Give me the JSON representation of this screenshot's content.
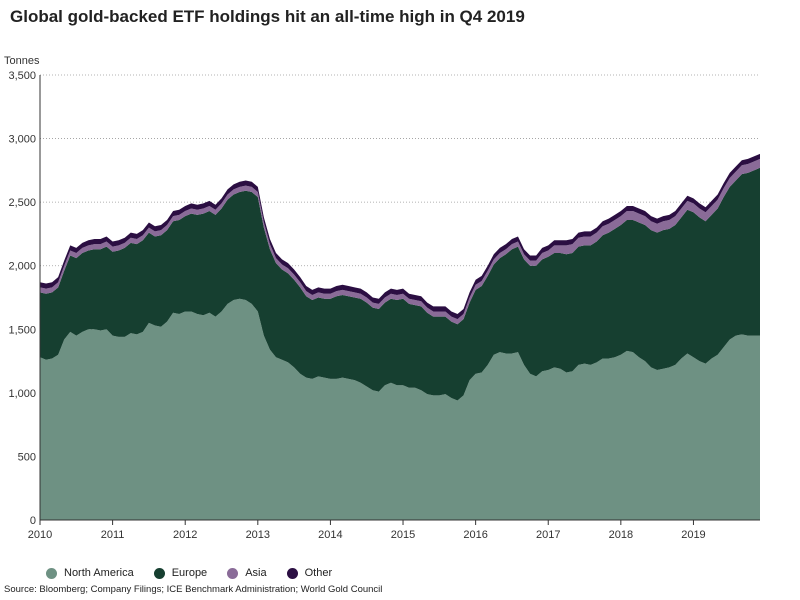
{
  "chart_data": {
    "type": "area",
    "title": "Global gold-backed ETF holdings hit an all-time high in Q4 2019",
    "ylabel": "Tonnes",
    "xlabel": "",
    "ylim": [
      0,
      3500
    ],
    "xlim": [
      "2010-01",
      "2019-12"
    ],
    "stacked": true,
    "grid": true,
    "legend": "bottom-left",
    "yticks": [
      "0",
      "500",
      "1,000",
      "1,500",
      "2,000",
      "2,500",
      "3,000",
      "3,500"
    ],
    "ytick_values": [
      0,
      500,
      1000,
      1500,
      2000,
      2500,
      3000,
      3500
    ],
    "xticks": [
      "2010",
      "2011",
      "2012",
      "2013",
      "2014",
      "2015",
      "2016",
      "2017",
      "2018",
      "2019"
    ],
    "x": [
      "2010-01",
      "2010-02",
      "2010-03",
      "2010-04",
      "2010-05",
      "2010-06",
      "2010-07",
      "2010-08",
      "2010-09",
      "2010-10",
      "2010-11",
      "2010-12",
      "2011-01",
      "2011-02",
      "2011-03",
      "2011-04",
      "2011-05",
      "2011-06",
      "2011-07",
      "2011-08",
      "2011-09",
      "2011-10",
      "2011-11",
      "2011-12",
      "2012-01",
      "2012-02",
      "2012-03",
      "2012-04",
      "2012-05",
      "2012-06",
      "2012-07",
      "2012-08",
      "2012-09",
      "2012-10",
      "2012-11",
      "2012-12",
      "2013-01",
      "2013-02",
      "2013-03",
      "2013-04",
      "2013-05",
      "2013-06",
      "2013-07",
      "2013-08",
      "2013-09",
      "2013-10",
      "2013-11",
      "2013-12",
      "2014-01",
      "2014-02",
      "2014-03",
      "2014-04",
      "2014-05",
      "2014-06",
      "2014-07",
      "2014-08",
      "2014-09",
      "2014-10",
      "2014-11",
      "2014-12",
      "2015-01",
      "2015-02",
      "2015-03",
      "2015-04",
      "2015-05",
      "2015-06",
      "2015-07",
      "2015-08",
      "2015-09",
      "2015-10",
      "2015-11",
      "2015-12",
      "2016-01",
      "2016-02",
      "2016-03",
      "2016-04",
      "2016-05",
      "2016-06",
      "2016-07",
      "2016-08",
      "2016-09",
      "2016-10",
      "2016-11",
      "2016-12",
      "2017-01",
      "2017-02",
      "2017-03",
      "2017-04",
      "2017-05",
      "2017-06",
      "2017-07",
      "2017-08",
      "2017-09",
      "2017-10",
      "2017-11",
      "2017-12",
      "2018-01",
      "2018-02",
      "2018-03",
      "2018-04",
      "2018-05",
      "2018-06",
      "2018-07",
      "2018-08",
      "2018-09",
      "2018-10",
      "2018-11",
      "2018-12",
      "2019-01",
      "2019-02",
      "2019-03",
      "2019-04",
      "2019-05",
      "2019-06",
      "2019-07",
      "2019-08",
      "2019-09",
      "2019-10",
      "2019-11",
      "2019-12"
    ],
    "series": [
      {
        "name": "North America",
        "color": "#6e9183",
        "values": [
          1280,
          1260,
          1270,
          1300,
          1420,
          1480,
          1450,
          1480,
          1500,
          1500,
          1490,
          1500,
          1450,
          1440,
          1440,
          1470,
          1460,
          1480,
          1550,
          1530,
          1520,
          1560,
          1630,
          1620,
          1640,
          1640,
          1620,
          1610,
          1630,
          1600,
          1640,
          1700,
          1730,
          1740,
          1730,
          1700,
          1640,
          1450,
          1340,
          1280,
          1260,
          1240,
          1200,
          1150,
          1120,
          1110,
          1130,
          1120,
          1110,
          1110,
          1120,
          1110,
          1100,
          1080,
          1050,
          1020,
          1010,
          1060,
          1080,
          1060,
          1060,
          1040,
          1040,
          1020,
          990,
          980,
          980,
          990,
          960,
          940,
          980,
          1100,
          1150,
          1160,
          1220,
          1300,
          1320,
          1310,
          1310,
          1320,
          1220,
          1150,
          1130,
          1170,
          1180,
          1200,
          1190,
          1160,
          1170,
          1220,
          1230,
          1220,
          1240,
          1270,
          1270,
          1280,
          1300,
          1330,
          1320,
          1280,
          1250,
          1200,
          1180,
          1190,
          1200,
          1220,
          1270,
          1310,
          1280,
          1250,
          1230,
          1270,
          1300,
          1360,
          1420,
          1450,
          1460,
          1450,
          1450,
          1450
        ]
      },
      {
        "name": "Europe",
        "color": "#163f30",
        "values": [
          510,
          520,
          520,
          530,
          540,
          600,
          610,
          620,
          620,
          630,
          640,
          650,
          660,
          680,
          700,
          710,
          710,
          720,
          710,
          700,
          720,
          720,
          720,
          740,
          750,
          770,
          780,
          800,
          800,
          800,
          810,
          820,
          830,
          840,
          860,
          880,
          900,
          850,
          790,
          740,
          710,
          700,
          690,
          680,
          640,
          620,
          620,
          620,
          630,
          650,
          650,
          650,
          650,
          660,
          660,
          650,
          650,
          650,
          660,
          670,
          680,
          660,
          650,
          660,
          640,
          620,
          620,
          610,
          600,
          600,
          600,
          610,
          660,
          680,
          700,
          710,
          740,
          780,
          820,
          830,
          830,
          850,
          870,
          880,
          890,
          900,
          910,
          930,
          930,
          930,
          930,
          940,
          950,
          970,
          990,
          1010,
          1020,
          1030,
          1040,
          1060,
          1070,
          1080,
          1080,
          1090,
          1090,
          1100,
          1110,
          1130,
          1140,
          1130,
          1120,
          1130,
          1150,
          1180,
          1200,
          1220,
          1260,
          1280,
          1300,
          1320
        ]
      },
      {
        "name": "Asia",
        "color": "#8a6b98",
        "values": [
          40,
          40,
          40,
          40,
          40,
          40,
          40,
          40,
          40,
          40,
          40,
          40,
          40,
          40,
          40,
          40,
          40,
          40,
          40,
          40,
          40,
          40,
          40,
          40,
          40,
          40,
          40,
          40,
          40,
          40,
          40,
          40,
          40,
          40,
          40,
          40,
          40,
          40,
          40,
          40,
          40,
          40,
          40,
          40,
          40,
          40,
          40,
          40,
          40,
          40,
          40,
          40,
          40,
          40,
          40,
          40,
          40,
          40,
          40,
          40,
          40,
          40,
          40,
          40,
          40,
          40,
          40,
          40,
          40,
          40,
          40,
          40,
          40,
          40,
          40,
          40,
          40,
          40,
          40,
          40,
          40,
          40,
          40,
          50,
          50,
          60,
          60,
          70,
          70,
          70,
          70,
          70,
          70,
          70,
          70,
          70,
          70,
          70,
          70,
          70,
          70,
          70,
          70,
          70,
          70,
          70,
          70,
          70,
          70,
          70,
          70,
          70,
          70,
          70,
          70,
          70,
          70,
          70,
          70,
          70
        ]
      },
      {
        "name": "Other",
        "color": "#2b0e42",
        "values": [
          40,
          40,
          40,
          40,
          40,
          40,
          40,
          40,
          40,
          40,
          40,
          40,
          40,
          40,
          40,
          40,
          40,
          40,
          40,
          40,
          40,
          40,
          40,
          40,
          40,
          40,
          40,
          40,
          40,
          40,
          40,
          40,
          40,
          40,
          40,
          40,
          40,
          40,
          40,
          40,
          40,
          40,
          40,
          40,
          40,
          40,
          40,
          40,
          40,
          40,
          40,
          40,
          40,
          40,
          40,
          40,
          40,
          40,
          40,
          40,
          40,
          40,
          40,
          40,
          40,
          40,
          40,
          40,
          40,
          40,
          40,
          40,
          40,
          40,
          40,
          40,
          40,
          40,
          40,
          40,
          40,
          40,
          40,
          40,
          40,
          40,
          40,
          40,
          40,
          40,
          40,
          40,
          40,
          40,
          40,
          40,
          40,
          40,
          40,
          40,
          40,
          40,
          40,
          40,
          40,
          40,
          40,
          40,
          40,
          40,
          40,
          40,
          40,
          40,
          40,
          40,
          40,
          40,
          40,
          40
        ]
      }
    ],
    "source": "Source: Bloomberg; Company Filings; ICE Benchmark Administration; World Gold Council"
  }
}
